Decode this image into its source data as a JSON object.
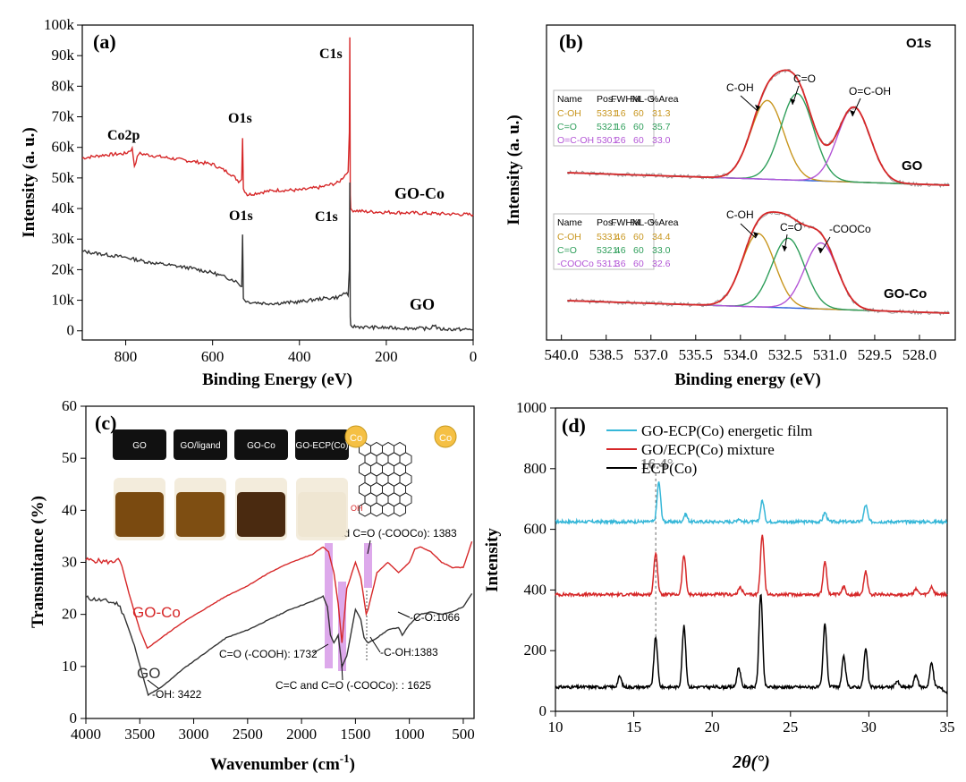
{
  "colors": {
    "red": "#d62728",
    "black": "#333333",
    "cyan": "#36b7d8",
    "orange": "#c8961e",
    "green": "#2e9e5a",
    "purple": "#b356d6",
    "blue": "#2a5bd8",
    "lavender": "#d79ae8"
  },
  "chart_data": [
    {
      "panel": "(a)",
      "type": "line",
      "xlabel": "Binding Energy (eV)",
      "ylabel": "Intensity (a. u.)",
      "xlim": [
        900,
        0
      ],
      "ylim": [
        -3000,
        100000
      ],
      "xticks": [
        "800",
        "600",
        "400",
        "200",
        "0"
      ],
      "yticks": [
        "0",
        "10k",
        "20k",
        "30k",
        "40k",
        "50k",
        "60k",
        "70k",
        "80k",
        "90k",
        "100k"
      ],
      "series": [
        {
          "name": "GO-Co",
          "points": [
            [
              900,
              56500
            ],
            [
              850,
              57500
            ],
            [
              800,
              58000
            ],
            [
              785,
              59500
            ],
            [
              780,
              54000
            ],
            [
              770,
              58000
            ],
            [
              700,
              56500
            ],
            [
              650,
              55500
            ],
            [
              600,
              54500
            ],
            [
              560,
              51500
            ],
            [
              540,
              49000
            ],
            [
              533,
              49500
            ],
            [
              531,
              63000
            ],
            [
              529,
              46500
            ],
            [
              520,
              44500
            ],
            [
              480,
              45500
            ],
            [
              450,
              46000
            ],
            [
              400,
              46000
            ],
            [
              350,
              47000
            ],
            [
              310,
              48500
            ],
            [
              295,
              51000
            ],
            [
              288,
              52000
            ],
            [
              285,
              65000
            ],
            [
              284,
              96000
            ],
            [
              283,
              45000
            ],
            [
              282,
              39500
            ],
            [
              250,
              39000
            ],
            [
              200,
              38800
            ],
            [
              150,
              38600
            ],
            [
              100,
              38400
            ],
            [
              50,
              38200
            ],
            [
              0,
              38000
            ]
          ]
        },
        {
          "name": "GO",
          "points": [
            [
              900,
              26000
            ],
            [
              850,
              25000
            ],
            [
              800,
              24000
            ],
            [
              750,
              22500
            ],
            [
              700,
              21500
            ],
            [
              650,
              20500
            ],
            [
              600,
              19000
            ],
            [
              550,
              16500
            ],
            [
              540,
              15500
            ],
            [
              533,
              14500
            ],
            [
              531,
              31500
            ],
            [
              529,
              10500
            ],
            [
              520,
              9500
            ],
            [
              480,
              9000
            ],
            [
              450,
              9000
            ],
            [
              400,
              9500
            ],
            [
              350,
              10500
            ],
            [
              310,
              11000
            ],
            [
              295,
              12500
            ],
            [
              288,
              11500
            ],
            [
              285,
              20000
            ],
            [
              284,
              48500
            ],
            [
              283,
              4000
            ],
            [
              282,
              1500
            ],
            [
              250,
              1200
            ],
            [
              200,
              1000
            ],
            [
              150,
              900
            ],
            [
              100,
              700
            ],
            [
              90,
              2000
            ],
            [
              80,
              600
            ],
            [
              50,
              500
            ],
            [
              0,
              400
            ]
          ]
        }
      ],
      "annotations": [
        "Co2p",
        "O1s",
        "C1s",
        "GO-Co",
        "O1s",
        "C1s",
        "GO"
      ]
    },
    {
      "panel": "(b)",
      "type": "line",
      "title": "O1s",
      "xlabel": "Binding energy (eV)",
      "ylabel": "Intensity (a. u.)",
      "xlim": [
        540.5,
        526.8
      ],
      "xticks": [
        "540.0",
        "538.5",
        "537.0",
        "535.5",
        "534.0",
        "532.5",
        "531.0",
        "529.5",
        "528.0"
      ],
      "xtick_values": [
        540.0,
        538.5,
        537.0,
        535.5,
        534.0,
        532.5,
        531.0,
        529.5,
        528.0
      ],
      "upper": {
        "sample": "GO",
        "table_header": [
          "Name",
          "Pos.",
          "FWHM",
          "%L-G",
          "%Area"
        ],
        "table_rows": [
          [
            "C-OH",
            "533.1",
            "1.6",
            "60",
            "31.3"
          ],
          [
            "C=O",
            "532.1",
            "1.6",
            "60",
            "35.7"
          ],
          [
            "O=C-OH",
            "530.2",
            "1.6",
            "60",
            "33.0"
          ]
        ],
        "peak_labels": [
          "C-OH",
          "C=O",
          "O=C-OH"
        ],
        "peaks": [
          {
            "pos": 533.1,
            "height": 1.0
          },
          {
            "pos": 532.1,
            "height": 1.1
          },
          {
            "pos": 530.2,
            "height": 0.95
          }
        ]
      },
      "lower": {
        "sample": "GO-Co",
        "table_header": [
          "Name",
          "Pos.",
          "FWHM",
          "%L-G",
          "%Area"
        ],
        "table_rows": [
          [
            "C-OH",
            "533.4",
            "1.6",
            "60",
            "34.4"
          ],
          [
            "C=O",
            "532.4",
            "1.6",
            "60",
            "33.0"
          ],
          [
            "-COOCo",
            "531.3",
            "1.6",
            "60",
            "32.6"
          ]
        ],
        "peak_labels": [
          "C-OH",
          "C=O",
          "-COOCo"
        ],
        "peaks": [
          {
            "pos": 533.4,
            "height": 1.0
          },
          {
            "pos": 532.4,
            "height": 0.95
          },
          {
            "pos": 531.3,
            "height": 0.9
          }
        ]
      }
    },
    {
      "panel": "(c)",
      "type": "line",
      "xlabel": "Wavenumber (cm",
      "xlabel_sup": "-1",
      "xlabel_close": ")",
      "ylabel": "Transmitance (%)",
      "xlim": [
        4000,
        400
      ],
      "ylim": [
        0,
        60
      ],
      "xticks": [
        "4000",
        "3500",
        "3000",
        "2500",
        "2000",
        "1500",
        "1000",
        "500"
      ],
      "yticks": [
        "0",
        "10",
        "20",
        "30",
        "40",
        "50",
        "60"
      ],
      "series": [
        {
          "name": "GO-Co",
          "points": [
            [
              4000,
              30.5
            ],
            [
              3750,
              30
            ],
            [
              3700,
              31
            ],
            [
              3650,
              28
            ],
            [
              3600,
              24
            ],
            [
              3500,
              17
            ],
            [
              3430,
              13.5
            ],
            [
              3300,
              15.5
            ],
            [
              3100,
              18.5
            ],
            [
              2900,
              21
            ],
            [
              2700,
              23.5
            ],
            [
              2500,
              25.5
            ],
            [
              2300,
              28
            ],
            [
              2100,
              30
            ],
            [
              1900,
              31.5
            ],
            [
              1800,
              33
            ],
            [
              1750,
              32
            ],
            [
              1700,
              28
            ],
            [
              1660,
              22
            ],
            [
              1625,
              14.5
            ],
            [
              1580,
              25
            ],
            [
              1500,
              30
            ],
            [
              1450,
              27
            ],
            [
              1400,
              20
            ],
            [
              1383,
              21
            ],
            [
              1300,
              28
            ],
            [
              1200,
              30
            ],
            [
              1100,
              28
            ],
            [
              1000,
              30
            ],
            [
              950,
              32.5
            ],
            [
              900,
              33
            ],
            [
              800,
              32
            ],
            [
              700,
              30
            ],
            [
              600,
              29
            ],
            [
              500,
              29
            ],
            [
              420,
              34
            ]
          ]
        },
        {
          "name": "GO",
          "points": [
            [
              4000,
              23.2
            ],
            [
              3800,
              22.5
            ],
            [
              3700,
              22
            ],
            [
              3650,
              20
            ],
            [
              3550,
              14
            ],
            [
              3450,
              6.5
            ],
            [
              3422,
              4.5
            ],
            [
              3300,
              6
            ],
            [
              3100,
              9.5
            ],
            [
              2900,
              12.5
            ],
            [
              2700,
              15.5
            ],
            [
              2500,
              17
            ],
            [
              2300,
              19
            ],
            [
              2100,
              21
            ],
            [
              1900,
              22.5
            ],
            [
              1800,
              23.5
            ],
            [
              1760,
              21.5
            ],
            [
              1732,
              16
            ],
            [
              1700,
              14.5
            ],
            [
              1660,
              16
            ],
            [
              1625,
              10
            ],
            [
              1580,
              12
            ],
            [
              1500,
              21
            ],
            [
              1450,
              19
            ],
            [
              1420,
              15.5
            ],
            [
              1383,
              14.5
            ],
            [
              1300,
              15.5
            ],
            [
              1200,
              17
            ],
            [
              1100,
              17.5
            ],
            [
              1066,
              16
            ],
            [
              1000,
              18
            ],
            [
              900,
              20
            ],
            [
              800,
              20.5
            ],
            [
              700,
              20
            ],
            [
              600,
              20.5
            ],
            [
              500,
              21.5
            ],
            [
              420,
              24
            ]
          ]
        }
      ],
      "legend_in_plot": [
        "GO-Co",
        "GO"
      ],
      "annotations": [
        "C-OH and C=O (-COOCo): 1383",
        "-C-O:1066",
        "-C-OH:1383",
        "C=O (-COOH): 1732",
        "C=C and C=O (-COOCo): : 1625",
        "-OH: 3422"
      ],
      "inset_vials": [
        "GO",
        "GO/ligand",
        "GO-Co",
        "GO-ECP(Co)"
      ],
      "inset_structure_labels": [
        "Co",
        "Co",
        "OH"
      ]
    },
    {
      "panel": "(d)",
      "type": "line",
      "xlabel": "2θ(°)",
      "ylabel": "Intensity",
      "xlim": [
        10,
        35
      ],
      "ylim": [
        0,
        1000
      ],
      "xticks": [
        "10",
        "15",
        "20",
        "25",
        "30",
        "35"
      ],
      "yticks": [
        "0",
        "200",
        "400",
        "600",
        "800",
        "1000"
      ],
      "annotation": "16.4°",
      "legend": [
        "GO-ECP(Co) energetic film",
        "GO/ECP(Co) mixture",
        "ECP(Co)"
      ],
      "series": [
        {
          "name": "GO-ECP(Co) energetic film",
          "base": 625,
          "peaks": [
            [
              16.6,
              130
            ],
            [
              18.3,
              25
            ],
            [
              23.2,
              70
            ],
            [
              27.2,
              30
            ],
            [
              29.8,
              55
            ],
            [
              21.7,
              10
            ]
          ]
        },
        {
          "name": "GO/ECP(Co) mixture",
          "base": 385,
          "peaks": [
            [
              16.4,
              140
            ],
            [
              18.2,
              130
            ],
            [
              21.8,
              25
            ],
            [
              23.2,
              200
            ],
            [
              27.2,
              110
            ],
            [
              28.4,
              25
            ],
            [
              29.8,
              75
            ],
            [
              33.0,
              20
            ],
            [
              34.0,
              25
            ]
          ]
        },
        {
          "name": "ECP(Co)",
          "base": 80,
          "peaks": [
            [
              14.1,
              35
            ],
            [
              16.4,
              165
            ],
            [
              18.2,
              200
            ],
            [
              21.7,
              65
            ],
            [
              23.1,
              310
            ],
            [
              27.2,
              210
            ],
            [
              28.4,
              100
            ],
            [
              29.8,
              125
            ],
            [
              31.8,
              20
            ],
            [
              33.0,
              40
            ],
            [
              34.0,
              80
            ]
          ]
        }
      ]
    }
  ]
}
